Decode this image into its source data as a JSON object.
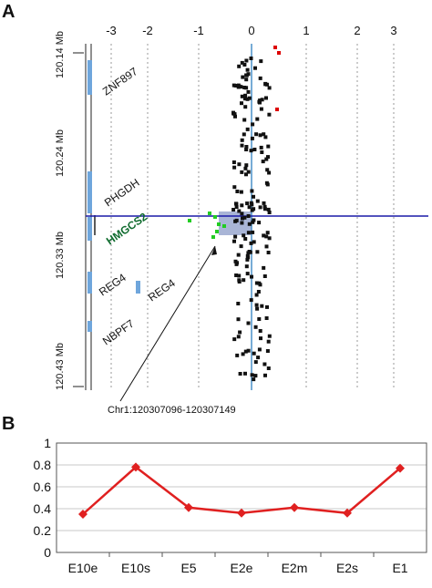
{
  "panel_a": {
    "label": "A",
    "x_ticks": [
      "-3",
      "-2",
      "-1",
      "0",
      "1",
      "2",
      "3"
    ],
    "y_labels": [
      "120.14 Mb",
      "120.24 Mb",
      "120.33 Mb",
      "120.43 Mb"
    ],
    "genes": [
      {
        "name": "ZNF897",
        "highlight": false
      },
      {
        "name": "PHGDH",
        "highlight": false
      },
      {
        "name": "HMGCS2",
        "highlight": true
      },
      {
        "name": "REG4",
        "highlight": false
      },
      {
        "name": "REG4",
        "highlight": false
      },
      {
        "name": "NBPF7",
        "highlight": false
      }
    ],
    "annotation": "Chr1:120307096-120307149",
    "colors": {
      "points": "#111111",
      "highlight_points": "#22cc22",
      "outlier_points": "#dd0000",
      "line": "#1a1aa8",
      "gene_bars": "#6fa6dc",
      "hmgcs2_label": "#0f6b2e",
      "box": "#9aa8cf"
    }
  },
  "panel_b": {
    "label": "B",
    "color": "#e02020"
  },
  "chart_data": [
    {
      "type": "scatter",
      "x_ticks": [
        -3,
        -2,
        -1,
        0,
        1,
        2,
        3
      ],
      "y_ticks": [
        "120.14 Mb",
        "120.24 Mb",
        "120.33 Mb",
        "120.43 Mb"
      ]
    },
    {
      "type": "line",
      "categories": [
        "E10e",
        "E10s",
        "E5",
        "E2e",
        "E2m",
        "E2s",
        "E1"
      ],
      "series": [
        {
          "values": [
            0.35,
            0.78,
            0.41,
            0.36,
            0.41,
            0.36,
            0.77
          ]
        }
      ],
      "ylim": [
        0,
        1
      ],
      "y_ticks": [
        "0",
        "0.2",
        "0.4",
        "0.6",
        "0.8",
        "1"
      ],
      "grid": true
    }
  ]
}
